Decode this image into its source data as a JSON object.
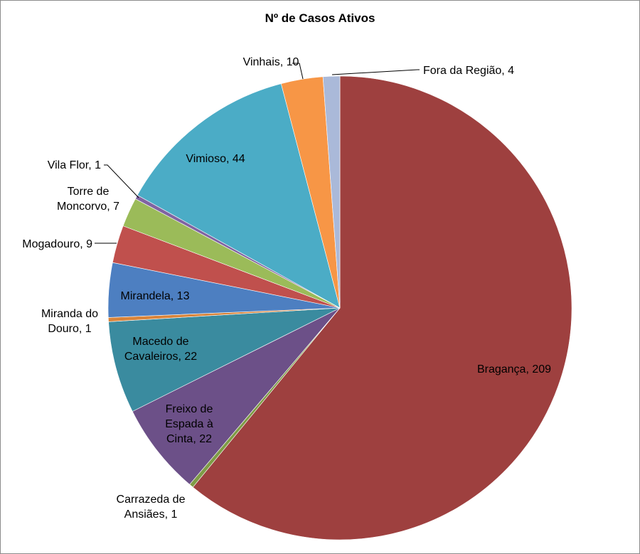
{
  "chart_data": {
    "type": "pie",
    "title": "Nº de Casos Ativos",
    "slices": [
      {
        "label": "Bragança",
        "value": 209,
        "display": "Bragança, 209",
        "color": "#9e403f"
      },
      {
        "label": "Carrazeda de Ansiães",
        "value": 1,
        "display_lines": [
          "Carrazeda de",
          "Ansiães, 1"
        ],
        "color": "#7f9c46"
      },
      {
        "label": "Freixo de Espada à Cinta",
        "value": 22,
        "display_lines": [
          "Freixo de",
          "Espada à",
          "Cinta, 22"
        ],
        "color": "#6c5088"
      },
      {
        "label": "Macedo de Cavaleiros",
        "value": 22,
        "display_lines": [
          "Macedo de",
          "Cavaleiros, 22"
        ],
        "color": "#3a8b9f"
      },
      {
        "label": "Miranda do Douro",
        "value": 1,
        "display_lines": [
          "Miranda do",
          "Douro, 1"
        ],
        "color": "#d9843a"
      },
      {
        "label": "Mirandela",
        "value": 13,
        "display": "Mirandela, 13",
        "color": "#4d7fc1"
      },
      {
        "label": "Mogadouro",
        "value": 9,
        "display": "Mogadouro, 9",
        "color": "#c0504d"
      },
      {
        "label": "Torre de Moncorvo",
        "value": 7,
        "display_lines": [
          "Torre de",
          "Moncorvo, 7"
        ],
        "color": "#9bbb59"
      },
      {
        "label": "Vila Flor",
        "value": 1,
        "display": "Vila Flor, 1",
        "color": "#8064a2"
      },
      {
        "label": "Vimioso",
        "value": 44,
        "display": "Vimioso, 44",
        "color": "#4bacc6"
      },
      {
        "label": "Vinhais",
        "value": 10,
        "display": "Vinhais, 10",
        "color": "#f79646"
      },
      {
        "label": "Fora da Região",
        "value": 4,
        "display": "Fora da Região, 4",
        "color": "#aab9d9"
      }
    ]
  }
}
